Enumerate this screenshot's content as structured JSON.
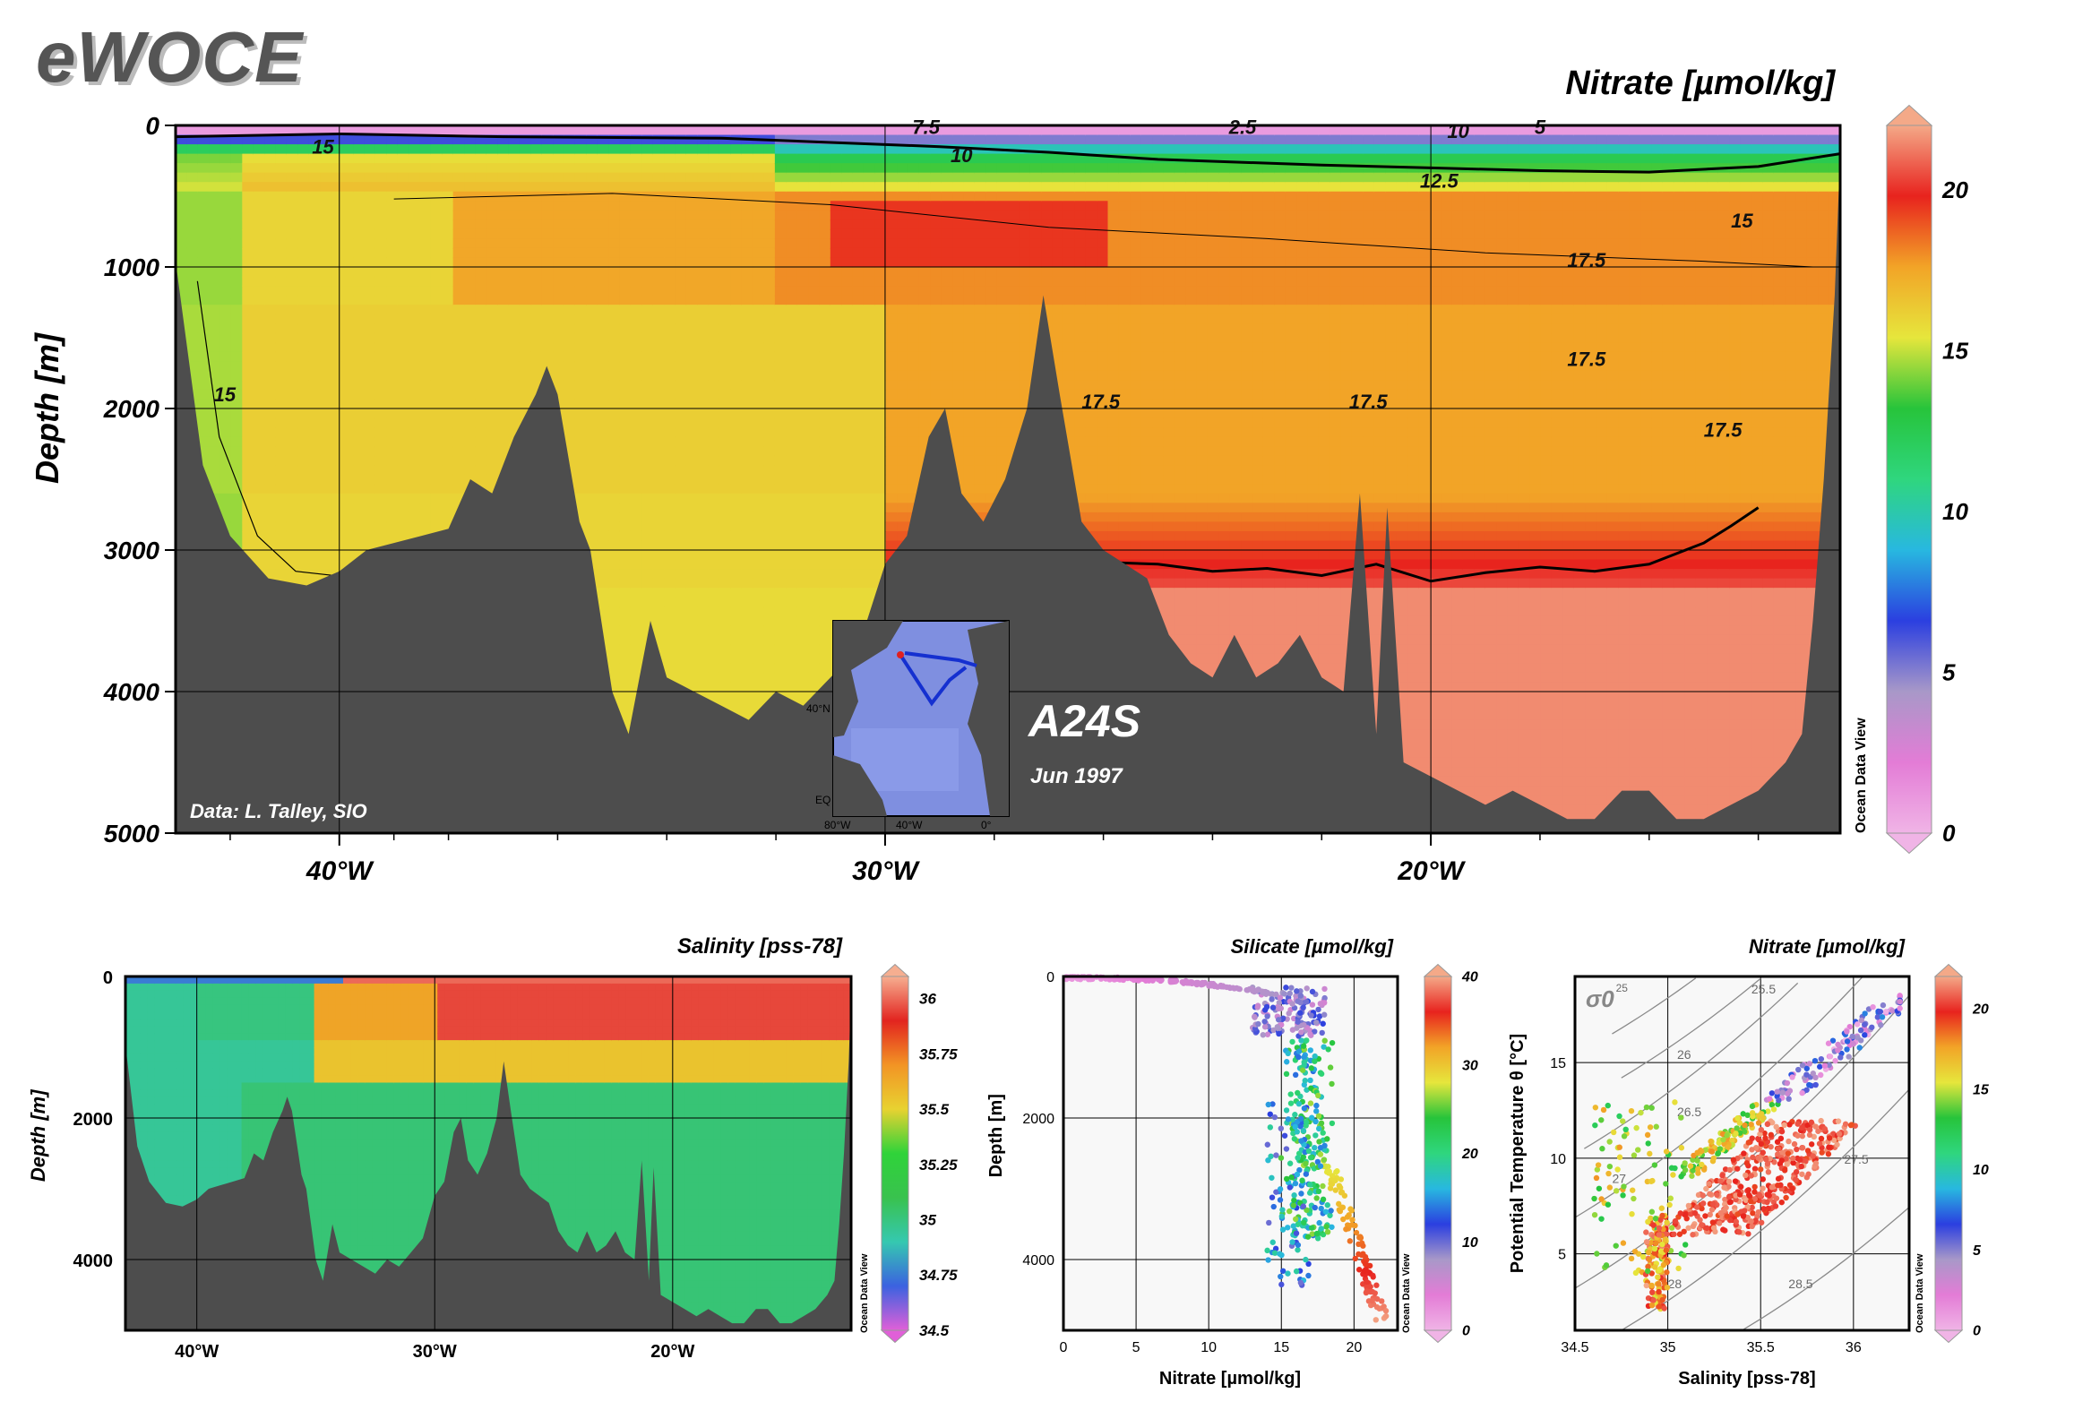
{
  "logo": "eWOCE",
  "colors": {
    "land": "#4d4d4d",
    "frame": "#000000",
    "nitrate_scale": [
      "#f0b4e6",
      "#e37cd6",
      "#a898c8",
      "#2b3fe0",
      "#28b8e0",
      "#2fd67e",
      "#27c43b",
      "#e6e63c",
      "#f2a427",
      "#e8231e",
      "#f4a988"
    ],
    "salinity_scale": [
      "#e060d8",
      "#3b62e0",
      "#35c8b0",
      "#39c24e",
      "#2fd33a",
      "#e8d231",
      "#f29424",
      "#e2241f",
      "#f6ae90"
    ]
  },
  "main_section": {
    "cruise": "A24S",
    "date": "Jun 1997",
    "credit": "Data: L. Talley, SIO",
    "watermark": "Ocean Data View",
    "inset_labels": [
      "40°N",
      "EQ",
      "80°W",
      "40°W",
      "0°"
    ]
  },
  "chart_data": [
    {
      "type": "heatmap",
      "title": "Nitrate [µmol/kg]",
      "ylabel": "Depth [m]",
      "xlabel": "",
      "x_ticks": [
        "40°W",
        "30°W",
        "20°W"
      ],
      "y_ticks": [
        "0",
        "1000",
        "2000",
        "3000",
        "4000",
        "5000"
      ],
      "xlim": [
        -43,
        -12.5
      ],
      "ylim": [
        5000,
        0
      ],
      "colorbar": {
        "ticks": [
          "20",
          "15",
          "10",
          "5",
          "0"
        ],
        "range": [
          0,
          22
        ]
      },
      "contour_labels": [
        "7.5",
        "2.5",
        "10",
        "5",
        "15",
        "10",
        "12.5",
        "15",
        "17.5",
        "17.5",
        "17.5",
        "17.5",
        "17.5",
        "15"
      ],
      "bottom_profile": [
        [
          -43,
          960
        ],
        [
          -42.5,
          2400
        ],
        [
          -42,
          2900
        ],
        [
          -41.3,
          3200
        ],
        [
          -40.6,
          3250
        ],
        [
          -40,
          3150
        ],
        [
          -39.5,
          3000
        ],
        [
          -39,
          2950
        ],
        [
          -38.5,
          2900
        ],
        [
          -38,
          2850
        ],
        [
          -37.6,
          2500
        ],
        [
          -37.2,
          2600
        ],
        [
          -36.8,
          2200
        ],
        [
          -36.4,
          1900
        ],
        [
          -36.2,
          1700
        ],
        [
          -36,
          1900
        ],
        [
          -35.6,
          2800
        ],
        [
          -35.4,
          3000
        ],
        [
          -35,
          4000
        ],
        [
          -34.7,
          4300
        ],
        [
          -34.3,
          3500
        ],
        [
          -34,
          3900
        ],
        [
          -33.5,
          4000
        ],
        [
          -33,
          4100
        ],
        [
          -32.5,
          4200
        ],
        [
          -32,
          4000
        ],
        [
          -31.5,
          4100
        ],
        [
          -31,
          3900
        ],
        [
          -30.5,
          3700
        ],
        [
          -30,
          3100
        ],
        [
          -29.6,
          2900
        ],
        [
          -29.2,
          2200
        ],
        [
          -28.9,
          2000
        ],
        [
          -28.6,
          2600
        ],
        [
          -28.2,
          2800
        ],
        [
          -27.8,
          2500
        ],
        [
          -27.4,
          2000
        ],
        [
          -27.1,
          1200
        ],
        [
          -26.8,
          1900
        ],
        [
          -26.4,
          2800
        ],
        [
          -26,
          3000
        ],
        [
          -25.6,
          3100
        ],
        [
          -25.2,
          3200
        ],
        [
          -24.8,
          3600
        ],
        [
          -24.4,
          3800
        ],
        [
          -24,
          3900
        ],
        [
          -23.6,
          3600
        ],
        [
          -23.2,
          3900
        ],
        [
          -22.8,
          3800
        ],
        [
          -22.4,
          3600
        ],
        [
          -22,
          3900
        ],
        [
          -21.6,
          4000
        ],
        [
          -21.3,
          2600
        ],
        [
          -21,
          4300
        ],
        [
          -20.8,
          2700
        ],
        [
          -20.5,
          4500
        ],
        [
          -20,
          4600
        ],
        [
          -19.5,
          4700
        ],
        [
          -19,
          4800
        ],
        [
          -18.5,
          4700
        ],
        [
          -18,
          4800
        ],
        [
          -17.5,
          4900
        ],
        [
          -17,
          4900
        ],
        [
          -16.5,
          4700
        ],
        [
          -16,
          4700
        ],
        [
          -15.5,
          4900
        ],
        [
          -15,
          4900
        ],
        [
          -14.5,
          4800
        ],
        [
          -14,
          4700
        ],
        [
          -13.5,
          4500
        ],
        [
          -13.2,
          4300
        ],
        [
          -13,
          3500
        ],
        [
          -12.8,
          2500
        ],
        [
          -12.6,
          1200
        ],
        [
          -12.5,
          200
        ]
      ],
      "isoline_20": [
        [
          -26.5,
          3080
        ],
        [
          -25,
          3100
        ],
        [
          -24,
          3150
        ],
        [
          -23,
          3130
        ],
        [
          -22,
          3180
        ],
        [
          -21,
          3100
        ],
        [
          -20,
          3220
        ],
        [
          -19,
          3160
        ],
        [
          -18,
          3120
        ],
        [
          -17,
          3150
        ],
        [
          -16,
          3100
        ],
        [
          -15,
          2950
        ],
        [
          -14.5,
          2830
        ],
        [
          -14,
          2700
        ]
      ],
      "isoline_15": [
        [
          -43,
          80
        ],
        [
          -40,
          60
        ],
        [
          -37,
          80
        ],
        [
          -33,
          90
        ],
        [
          -31,
          120
        ],
        [
          -29,
          150
        ],
        [
          -27,
          190
        ],
        [
          -25,
          240
        ],
        [
          -22,
          280
        ],
        [
          -20,
          300
        ],
        [
          -18,
          320
        ],
        [
          -16,
          330
        ],
        [
          -14,
          290
        ],
        [
          -12.5,
          200
        ]
      ]
    },
    {
      "type": "heatmap",
      "title": "Salinity [pss-78]",
      "ylabel": "Depth [m]",
      "x_ticks": [
        "40°W",
        "30°W",
        "20°W"
      ],
      "y_ticks": [
        "0",
        "2000",
        "4000"
      ],
      "xlim": [
        -43,
        -12.5
      ],
      "ylim": [
        5000,
        0
      ],
      "colorbar": {
        "ticks": [
          "36",
          "35.75",
          "35.5",
          "35.25",
          "35",
          "34.75",
          "34.5"
        ],
        "range": [
          34.5,
          36.1
        ]
      }
    },
    {
      "type": "scatter",
      "title": "Silicate [µmol/kg]",
      "xlabel": "Nitrate [µmol/kg]",
      "ylabel": "Depth [m]",
      "x_ticks": [
        "0",
        "5",
        "10",
        "15",
        "20"
      ],
      "y_ticks": [
        "0",
        "2000",
        "4000"
      ],
      "xlim": [
        0,
        23
      ],
      "ylim": [
        5000,
        0
      ],
      "colorbar": {
        "ticks": [
          "40",
          "30",
          "20",
          "10",
          "0"
        ],
        "range": [
          0,
          40
        ]
      }
    },
    {
      "type": "scatter",
      "title": "Nitrate [µmol/kg]",
      "xlabel": "Salinity [pss-78]",
      "ylabel": "Potential Temperature θ [°C]",
      "x_ticks": [
        "34.5",
        "35",
        "35.5",
        "36"
      ],
      "y_ticks": [
        "5",
        "10",
        "15"
      ],
      "xlim": [
        34.5,
        36.3
      ],
      "ylim": [
        1,
        19.5
      ],
      "sigma_label": "σ0",
      "density_labels": [
        "25",
        "25.5",
        "26",
        "26.5",
        "27",
        "27.5",
        "28",
        "28.5"
      ],
      "colorbar": {
        "ticks": [
          "20",
          "15",
          "10",
          "5",
          "0"
        ],
        "range": [
          0,
          22
        ]
      }
    }
  ]
}
